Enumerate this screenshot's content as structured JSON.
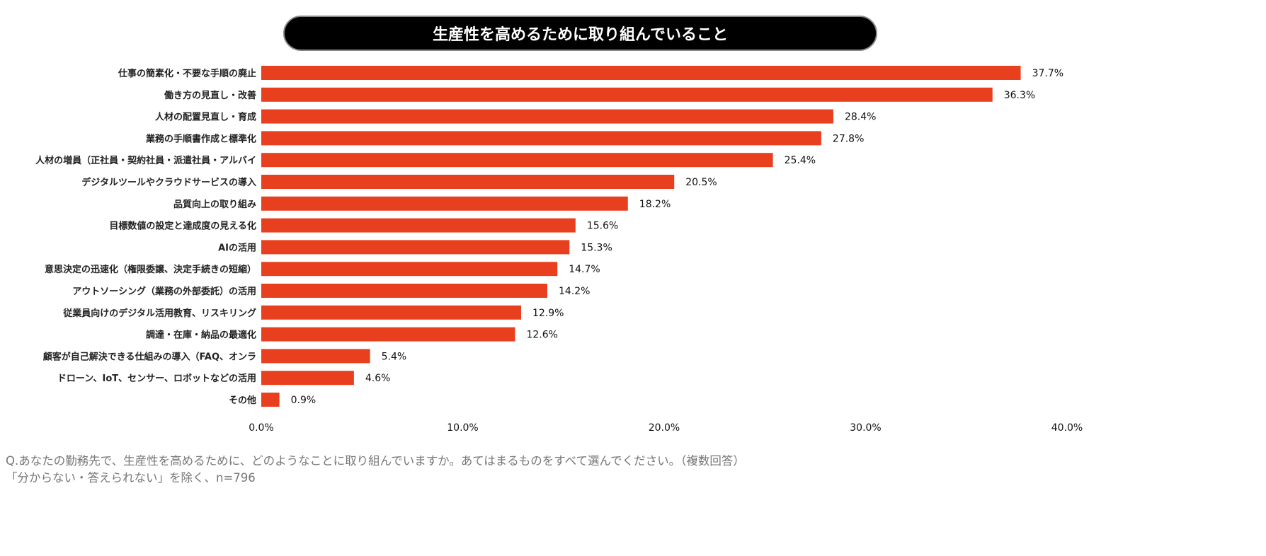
{
  "chart_data": {
    "type": "bar",
    "orientation": "horizontal",
    "title": "生産性を高めるために取り組んでいること",
    "categories": [
      "仕事の簡素化・不要な手順の廃止",
      "働き方の見直し・改善",
      "人材の配置見直し・育成",
      "業務の手順書作成と標準化",
      "人材の増員（正社員・契約社員・派遣社員・アルバイ",
      "デジタルツールやクラウドサービスの導入",
      "品質向上の取り組み",
      "目標数値の設定と達成度の見える化",
      "AIの活用",
      "意思決定の迅速化（権限委譲、決定手続きの短縮）",
      "アウトソーシング（業務の外部委託）の活用",
      "従業員向けのデジタル活用教育、リスキリング",
      "調達・在庫・納品の最適化",
      "顧客が自己解決できる仕組みの導入（FAQ、オンラ",
      "ドローン、IoT、センサー、ロボットなどの活用",
      "その他"
    ],
    "values": [
      37.7,
      36.3,
      28.4,
      27.8,
      25.4,
      20.5,
      18.2,
      15.6,
      15.3,
      14.7,
      14.2,
      12.9,
      12.6,
      5.4,
      4.6,
      0.9
    ],
    "data_labels": [
      "37.7%",
      "36.3%",
      "28.4%",
      "27.8%",
      "25.4%",
      "20.5%",
      "18.2%",
      "15.6%",
      "15.3%",
      "14.7%",
      "14.2%",
      "12.9%",
      "12.6%",
      "5.4%",
      "4.6%",
      "0.9%"
    ],
    "xlim": [
      0,
      40
    ],
    "x_ticks": [
      "0.0%",
      "10.0%",
      "20.0%",
      "30.0%",
      "40.0%"
    ],
    "grid": false,
    "bar_color": "#e8401f"
  },
  "footnote": {
    "question": "Q.あなたの勤務先で、生産性を高めるために、どのようなことに取り組んでいますか。あてはまるものをすべて選んでください。（複数回答）",
    "note": "「分からない・答えられない」を除く、n=796"
  }
}
